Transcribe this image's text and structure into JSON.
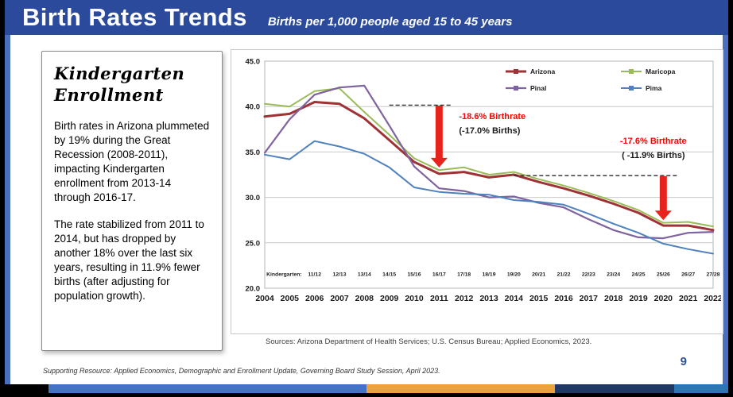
{
  "header": {
    "title": "Birth Rates Trends",
    "subtitle": "Births per 1,000 people aged 15 to 45 years"
  },
  "sidebar": {
    "title_line1": "Kindergarten",
    "title_line2": "Enrollment",
    "paragraph1": "Birth rates in Arizona plummeted by 19% during the Great Recession (2008-2011), impacting Kindergarten enrollment from 2013-14 through 2016-17.",
    "paragraph2": "The rate stabilized from 2011 to 2014, but has dropped by another 18% over the last six years, resulting in 11.9% fewer births (after adjusting for population growth)."
  },
  "chart_data": {
    "type": "line",
    "title": "",
    "xlabel": "",
    "ylabel": "",
    "x": [
      2004,
      2005,
      2006,
      2007,
      2008,
      2009,
      2010,
      2011,
      2012,
      2013,
      2014,
      2015,
      2016,
      2017,
      2018,
      2019,
      2020,
      2021,
      2022
    ],
    "ylim": [
      20,
      45
    ],
    "yticks": [
      20,
      25,
      30,
      35,
      40,
      45
    ],
    "ytick_labels": [
      "20.0",
      "25.0",
      "30.0",
      "35.0",
      "40.0",
      "45.0"
    ],
    "grid": true,
    "legend_position": "top-right",
    "series": [
      {
        "name": "Arizona",
        "color": "#9e3234",
        "width": 3,
        "values": [
          38.9,
          39.2,
          40.5,
          40.3,
          38.7,
          36.3,
          33.9,
          32.6,
          32.8,
          32.2,
          32.5,
          31.7,
          31.0,
          30.2,
          29.3,
          28.3,
          26.9,
          26.9,
          26.4
        ]
      },
      {
        "name": "Maricopa",
        "color": "#9abb59",
        "width": 2,
        "values": [
          40.3,
          40.0,
          41.7,
          42.0,
          39.4,
          36.9,
          34.3,
          33.0,
          33.3,
          32.5,
          32.8,
          32.0,
          31.3,
          30.5,
          29.6,
          28.6,
          27.2,
          27.3,
          26.8
        ]
      },
      {
        "name": "Pinal",
        "color": "#7f63a1",
        "width": 2.2,
        "values": [
          34.9,
          38.6,
          41.3,
          42.1,
          42.3,
          37.9,
          33.4,
          31.0,
          30.7,
          30.0,
          30.1,
          29.4,
          28.9,
          27.6,
          26.4,
          25.6,
          25.5,
          26.1,
          26.2
        ]
      },
      {
        "name": "Pima",
        "color": "#4e81bd",
        "width": 2,
        "values": [
          34.7,
          34.2,
          36.2,
          35.6,
          34.8,
          33.3,
          31.1,
          30.6,
          30.4,
          30.3,
          29.7,
          29.5,
          29.2,
          28.2,
          27.1,
          26.1,
          24.9,
          24.3,
          23.8
        ]
      }
    ],
    "kindergarten_label": "Kindergarten:",
    "kindergarten_start_year": 2006,
    "kindergarten_years": [
      "11/12",
      "12/13",
      "13/14",
      "14/15",
      "15/16",
      "16/17",
      "17/18",
      "18/19",
      "19/20",
      "20/21",
      "21/22",
      "22/23",
      "23/24",
      "24/25",
      "25/26",
      "26/27",
      "27/28"
    ],
    "annotations": [
      {
        "line1": "-18.6% Birthrate",
        "line2": "(-17.0% Births)",
        "line1_color": "#ff0000",
        "line2_color": "#1a1a1a",
        "arrow_year": 2011,
        "arrow_from": 40.1,
        "arrow_to": 33.3,
        "dash_year_start": 2009,
        "dash_year_end": 2011.55,
        "dash_value": 40.15,
        "label_year": 2011.8,
        "label_value": 38.6,
        "label_anchor": "start"
      },
      {
        "line1": "-17.6% Birthrate",
        "line2": "( -11.9% Births)",
        "line1_color": "#ff0000",
        "line2_color": "#1a1a1a",
        "arrow_year": 2020,
        "arrow_from": 32.35,
        "arrow_to": 27.5,
        "dash_year_start": 2014,
        "dash_year_end": 2020.55,
        "dash_value": 32.4,
        "label_year": 2019.6,
        "label_value": 35.9,
        "label_anchor": "middle"
      }
    ],
    "source": "Sources: Arizona Department of Health Services; U.S. Census Bureau; Applied Economics, 2023."
  },
  "footer": {
    "supporting": "Supporting Resource: Applied Economics, Demographic and Enrollment Update, Governing Board Study Session, April 2023.",
    "page_number": "9"
  },
  "colors": {
    "header_blue": "#2b4a9c",
    "edge_blue": "#4a6fbe",
    "arrow_red": "#e8231e",
    "annotation_red": "#ff0000",
    "page_number_blue": "#2e5395",
    "footer_segments": [
      "#000000",
      "#4472c4",
      "#eda13c",
      "#1f3864",
      "#2e75b6"
    ]
  }
}
